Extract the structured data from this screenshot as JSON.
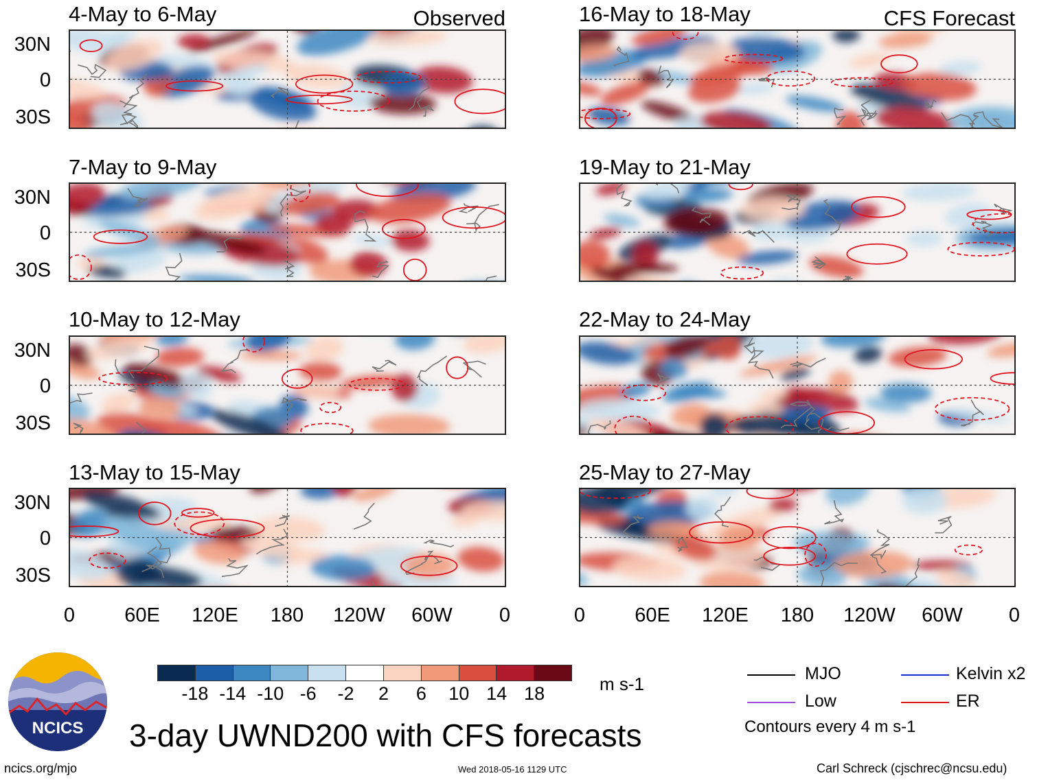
{
  "main_title": "3-day UWND200 with CFS forecasts",
  "site": "ncics.org/mjo",
  "timestamp": "Wed 2018-05-16 1129 UTC",
  "author": "Carl Schreck (cjschrec@ncsu.edu)",
  "logo_text": "NCICS",
  "observed_label": "Observed",
  "forecast_label": "CFS Forecast",
  "panels_left": [
    {
      "title": "4-May to 6-May"
    },
    {
      "title": "7-May to 9-May"
    },
    {
      "title": "10-May to 12-May"
    },
    {
      "title": "13-May to 15-May"
    }
  ],
  "panels_right": [
    {
      "title": "16-May to 18-May"
    },
    {
      "title": "19-May to 21-May"
    },
    {
      "title": "22-May to 24-May"
    },
    {
      "title": "25-May to 27-May"
    }
  ],
  "lat_labels": [
    "30N",
    "0",
    "30S"
  ],
  "lon_labels": [
    "0",
    "60E",
    "120E",
    "180",
    "120W",
    "60W",
    "0"
  ],
  "colorbar": {
    "units": "m s-1",
    "tick_labels": [
      "-18",
      "-14",
      "-10",
      "-6",
      "-2",
      "2",
      "6",
      "10",
      "14",
      "18"
    ],
    "colors": [
      "#0a2a52",
      "#1c5fa8",
      "#3d87c2",
      "#7fb6d9",
      "#c8e0ef",
      "#ffffff",
      "#fbd4c0",
      "#f09a7a",
      "#d9503f",
      "#b11a2a",
      "#6b0a16"
    ]
  },
  "legend": {
    "items": [
      {
        "label": "MJO",
        "color": "#000000"
      },
      {
        "label": "Kelvin x2",
        "color": "#1a2bd0"
      },
      {
        "label": "Low",
        "color": "#9b4de0"
      },
      {
        "label": "ER",
        "color": "#e0141e"
      }
    ],
    "note": "Contours every 4 m s-1"
  }
}
